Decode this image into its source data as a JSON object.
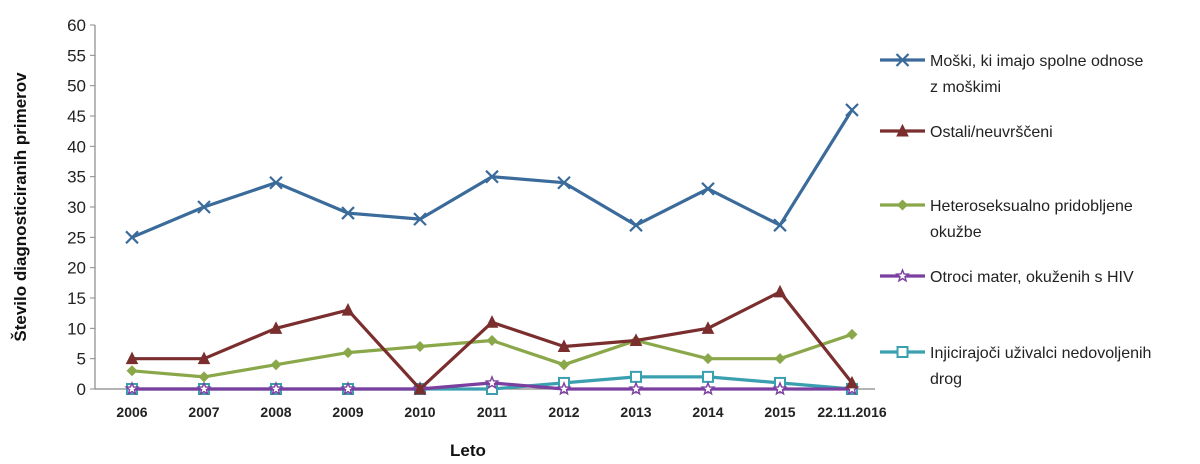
{
  "chart_data": {
    "type": "line",
    "xlabel": "Leto",
    "ylabel": "Število diagnosticiranih primerov",
    "ylim": [
      0,
      60
    ],
    "yticks": [
      0,
      5,
      10,
      15,
      20,
      25,
      30,
      35,
      40,
      45,
      50,
      55,
      60
    ],
    "categories": [
      "2006",
      "2007",
      "2008",
      "2009",
      "2010",
      "2011",
      "2012",
      "2013",
      "2014",
      "2015",
      "22.11.2016"
    ],
    "grid": false,
    "legend_position": "right",
    "series": [
      {
        "name_lines": [
          "Moški, ki imajo spolne odnose",
          "z moškimi"
        ],
        "color": "#3a6b9a",
        "marker": "x",
        "values": [
          25,
          30,
          34,
          29,
          28,
          35,
          34,
          27,
          33,
          27,
          46
        ]
      },
      {
        "name_lines": [
          "Ostali/neuvrščeni"
        ],
        "color": "#7a2e2e",
        "marker": "triangle",
        "values": [
          5,
          5,
          10,
          13,
          0,
          11,
          7,
          8,
          10,
          16,
          1
        ]
      },
      {
        "name_lines": [
          "Heteroseksualno pridobljene",
          "okužbe"
        ],
        "color": "#8aa84a",
        "marker": "diamond",
        "values": [
          3,
          2,
          4,
          6,
          7,
          8,
          4,
          8,
          5,
          5,
          9
        ]
      },
      {
        "name_lines": [
          "Otroci mater, okuženih s HIV"
        ],
        "color": "#7b3fa0",
        "marker": "star",
        "values": [
          0,
          0,
          0,
          0,
          0,
          1,
          0,
          0,
          0,
          0,
          0
        ]
      },
      {
        "name_lines": [
          "Injicirajoči uživalci nedovoljenih",
          "drog"
        ],
        "color": "#3aa0b0",
        "marker": "square",
        "values": [
          0,
          0,
          0,
          0,
          0,
          0,
          1,
          2,
          2,
          1,
          0
        ]
      }
    ]
  }
}
